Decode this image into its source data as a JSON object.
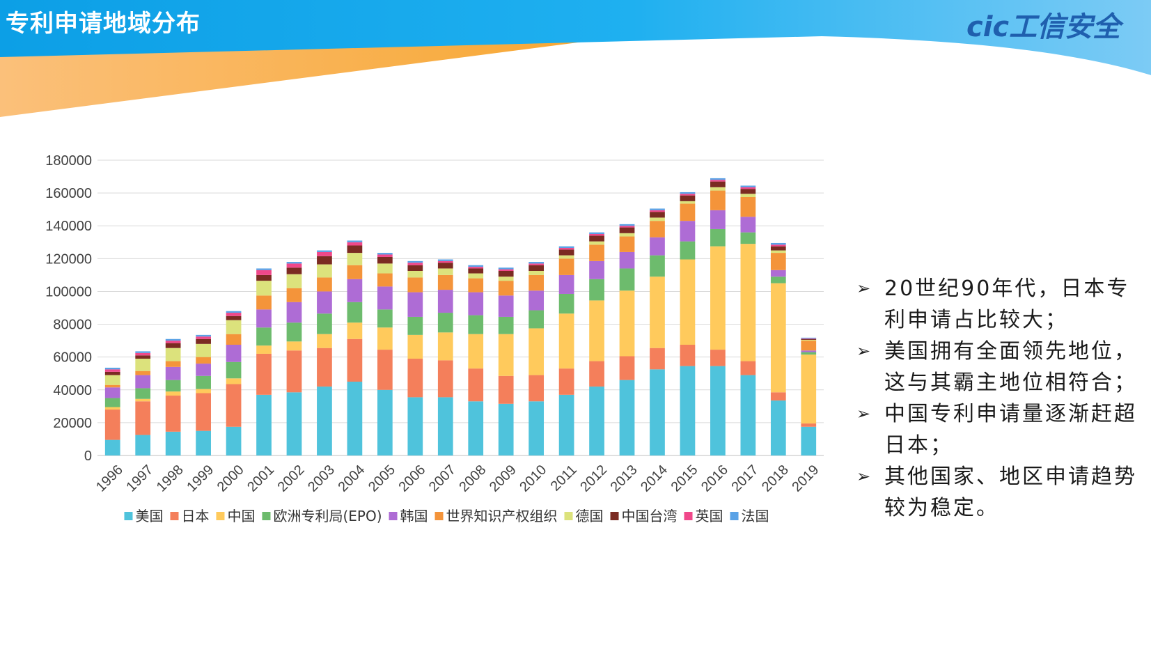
{
  "header": {
    "title": "专利申请地域分布",
    "logo_text": "cic工信安全"
  },
  "notes": [
    "20世纪90年代，日本专利申请占比较大；",
    "美国拥有全面领先地位，这与其霸主地位相符合；",
    "中国专利申请量逐渐赶超日本；",
    "其他国家、地区申请趋势较为稳定。"
  ],
  "chart_data": {
    "type": "bar",
    "stacked": true,
    "title": "",
    "xlabel": "",
    "ylabel": "",
    "ylim": [
      0,
      180000
    ],
    "yticks": [
      0,
      20000,
      40000,
      60000,
      80000,
      100000,
      120000,
      140000,
      160000,
      180000
    ],
    "grid": true,
    "legend_position": "bottom",
    "categories": [
      "1996",
      "1997",
      "1998",
      "1999",
      "2000",
      "2001",
      "2002",
      "2003",
      "2004",
      "2005",
      "2006",
      "2007",
      "2008",
      "2009",
      "2010",
      "2011",
      "2012",
      "2013",
      "2014",
      "2015",
      "2016",
      "2017",
      "2018",
      "2019"
    ],
    "series": [
      {
        "name": "美国",
        "color": "#4FC3DC",
        "values": [
          9500,
          12500,
          14500,
          15000,
          17500,
          37000,
          38500,
          42000,
          45000,
          40000,
          35500,
          35500,
          33000,
          31500,
          33000,
          37000,
          42000,
          46000,
          52500,
          54500,
          54500,
          49000,
          33500,
          17500
        ]
      },
      {
        "name": "日本",
        "color": "#F47F5B",
        "values": [
          18500,
          20500,
          22000,
          23000,
          26000,
          25000,
          25500,
          23500,
          26000,
          24500,
          23500,
          22500,
          20000,
          17000,
          16000,
          16000,
          15500,
          14500,
          13000,
          13000,
          10000,
          8500,
          5000,
          2000
        ]
      },
      {
        "name": "中国",
        "color": "#FFCA5C",
        "values": [
          1500,
          1500,
          2500,
          2500,
          3500,
          5000,
          5500,
          8500,
          10000,
          13500,
          14500,
          17000,
          21000,
          25500,
          28500,
          33500,
          37000,
          40000,
          43500,
          52000,
          63000,
          71500,
          66500,
          42000
        ]
      },
      {
        "name": "欧洲专利局(EPO)",
        "color": "#6DBB6D",
        "values": [
          5500,
          6500,
          7000,
          8000,
          10000,
          11000,
          11500,
          12500,
          12500,
          11000,
          11000,
          12000,
          11500,
          10500,
          11000,
          12000,
          13000,
          13500,
          13000,
          11000,
          10500,
          7000,
          4000,
          1500
        ]
      },
      {
        "name": "韩国",
        "color": "#AE6CD5",
        "values": [
          6500,
          8000,
          8000,
          7500,
          10500,
          11000,
          12500,
          13500,
          14000,
          14000,
          15000,
          14000,
          14000,
          13000,
          12000,
          11500,
          11000,
          10000,
          11000,
          12500,
          11500,
          9500,
          4000,
          1000
        ]
      },
      {
        "name": "世界知识产权组织",
        "color": "#F4943A",
        "values": [
          1500,
          2500,
          3500,
          4000,
          6500,
          8500,
          8500,
          8500,
          8500,
          8000,
          9000,
          9000,
          8500,
          9000,
          9500,
          10000,
          10000,
          9500,
          10000,
          10500,
          12000,
          12000,
          10500,
          6000
        ]
      },
      {
        "name": "德国",
        "color": "#DCE27C",
        "values": [
          6000,
          7500,
          8000,
          8000,
          8500,
          9000,
          8500,
          8000,
          7500,
          6000,
          4000,
          4000,
          3000,
          2500,
          2500,
          2000,
          2000,
          2000,
          2000,
          1500,
          2000,
          2000,
          1500,
          500
        ]
      },
      {
        "name": "中国台湾",
        "color": "#7B2B22",
        "values": [
          2000,
          2000,
          3000,
          3000,
          2500,
          3500,
          4000,
          5000,
          4500,
          4000,
          3500,
          3500,
          3000,
          3500,
          3500,
          3500,
          3500,
          3500,
          3500,
          3500,
          3500,
          3000,
          2500,
          500
        ]
      },
      {
        "name": "英国",
        "color": "#F0488A",
        "values": [
          1500,
          1500,
          1500,
          1500,
          2000,
          3000,
          2500,
          2500,
          2000,
          1500,
          1500,
          1000,
          1000,
          1000,
          1000,
          1000,
          1000,
          1000,
          1000,
          1000,
          1000,
          1000,
          1000,
          300
        ]
      },
      {
        "name": "法国",
        "color": "#5AA2E6",
        "values": [
          1000,
          1000,
          1000,
          1000,
          1000,
          1000,
          1000,
          1000,
          1000,
          1000,
          1000,
          1000,
          1000,
          1000,
          1000,
          1000,
          1000,
          1000,
          1000,
          1000,
          1000,
          1000,
          1000,
          500
        ]
      }
    ]
  }
}
